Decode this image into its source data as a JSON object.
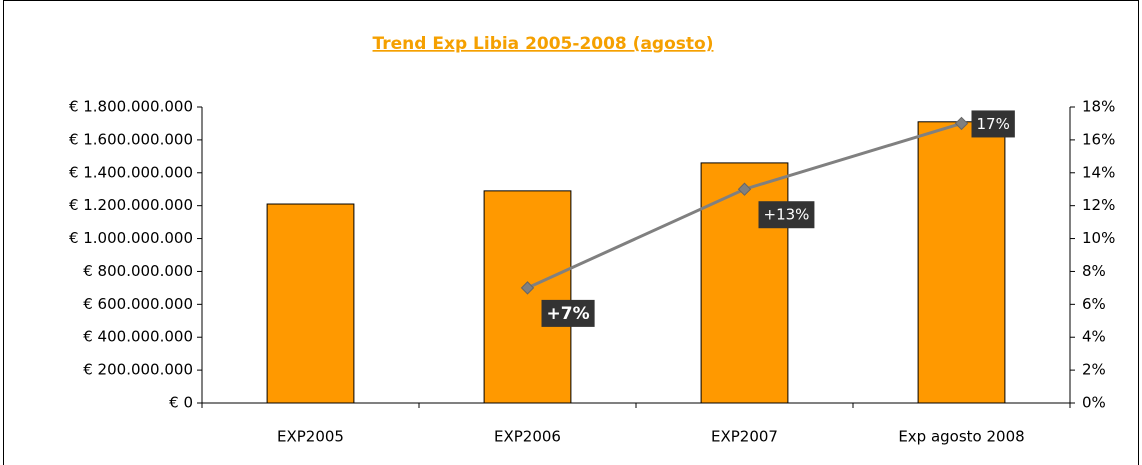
{
  "chart_data": {
    "type": "bar",
    "title": "Trend Exp Libia 2005-2008 (agosto)",
    "categories": [
      "EXP2005",
      "EXP2006",
      "EXP2007",
      "Exp agosto 2008"
    ],
    "series": [
      {
        "color": "#ff9900",
        "values": [
          1210000000,
          1290000000,
          1460000000,
          1710000000
        ]
      },
      {
        "type": "line",
        "color": "#808080",
        "axis": "y2",
        "values": [
          null,
          7,
          13,
          17
        ],
        "value_labels": [
          null,
          "+7%",
          "+13%",
          "17%"
        ]
      }
    ],
    "ylim": [
      0,
      1800000000
    ],
    "yticks": [
      {
        "value": 0,
        "label": "€ 0"
      },
      {
        "value": 200000000,
        "label": "€ 200.000.000"
      },
      {
        "value": 400000000,
        "label": "€ 400.000.000"
      },
      {
        "value": 600000000,
        "label": "€ 600.000.000"
      },
      {
        "value": 800000000,
        "label": "€ 800.000.000"
      },
      {
        "value": 1000000000,
        "label": "€ 1.000.000.000"
      },
      {
        "value": 1200000000,
        "label": "€ 1.200.000.000"
      },
      {
        "value": 1400000000,
        "label": "€ 1.400.000.000"
      },
      {
        "value": 1600000000,
        "label": "€ 1.600.000.000"
      },
      {
        "value": 1800000000,
        "label": "€ 1.800.000.000"
      }
    ],
    "y2lim": [
      0,
      18
    ],
    "y2ticks": [
      {
        "value": 0,
        "label": "0%"
      },
      {
        "value": 2,
        "label": "2%"
      },
      {
        "value": 4,
        "label": "4%"
      },
      {
        "value": 6,
        "label": "6%"
      },
      {
        "value": 8,
        "label": "8%"
      },
      {
        "value": 10,
        "label": "10%"
      },
      {
        "value": 12,
        "label": "12%"
      },
      {
        "value": 14,
        "label": "14%"
      },
      {
        "value": 16,
        "label": "16%"
      },
      {
        "value": 18,
        "label": "18%"
      }
    ],
    "grid": false
  }
}
